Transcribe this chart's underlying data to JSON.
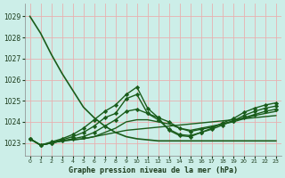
{
  "title": "Graphe pression niveau de la mer (hPa)",
  "background_color": "#cceee8",
  "grid_color": "#e8b0b0",
  "line_color": "#1a5c1a",
  "xlim": [
    -0.5,
    23.5
  ],
  "ylim": [
    1022.4,
    1029.6
  ],
  "yticks": [
    1023,
    1024,
    1025,
    1026,
    1027,
    1028,
    1029
  ],
  "xticks": [
    0,
    1,
    2,
    3,
    4,
    5,
    6,
    7,
    8,
    9,
    10,
    11,
    12,
    13,
    14,
    15,
    16,
    17,
    18,
    19,
    20,
    21,
    22,
    23
  ],
  "series": [
    {
      "y": [
        1029.0,
        1028.2,
        1027.2,
        1026.3,
        1025.5,
        1024.7,
        1024.2,
        1023.8,
        1023.5,
        1023.3,
        1023.2,
        1023.15,
        1023.1,
        1023.1,
        1023.1,
        1023.1,
        1023.1,
        1023.1,
        1023.1,
        1023.1,
        1023.1,
        1023.1,
        1023.1,
        1023.1
      ],
      "marker": false,
      "lw": 1.2
    },
    {
      "y": [
        1023.2,
        1022.9,
        1023.0,
        1023.1,
        1023.15,
        1023.2,
        1023.3,
        1023.4,
        1023.5,
        1023.6,
        1023.65,
        1023.7,
        1023.75,
        1023.8,
        1023.85,
        1023.9,
        1023.95,
        1024.0,
        1024.05,
        1024.1,
        1024.15,
        1024.2,
        1024.25,
        1024.3
      ],
      "marker": false,
      "lw": 1.0
    },
    {
      "y": [
        1023.2,
        1022.9,
        1023.0,
        1023.1,
        1023.15,
        1023.2,
        1023.3,
        1023.5,
        1023.7,
        1024.0,
        1024.1,
        1024.1,
        1024.0,
        1023.9,
        1023.7,
        1023.6,
        1023.7,
        1023.8,
        1023.9,
        1024.0,
        1024.15,
        1024.3,
        1024.4,
        1024.5
      ],
      "marker": false,
      "lw": 1.0
    },
    {
      "y": [
        1023.2,
        1022.9,
        1023.0,
        1023.1,
        1023.2,
        1023.3,
        1023.5,
        1023.8,
        1024.1,
        1024.5,
        1024.6,
        1024.4,
        1024.2,
        1024.0,
        1023.7,
        1023.55,
        1023.65,
        1023.75,
        1023.9,
        1024.05,
        1024.2,
        1024.35,
        1024.5,
        1024.6
      ],
      "marker": true,
      "lw": 1.0
    },
    {
      "y": [
        1023.2,
        1022.9,
        1023.0,
        1023.15,
        1023.3,
        1023.5,
        1023.8,
        1024.2,
        1024.4,
        1025.1,
        1025.3,
        1024.4,
        1024.1,
        1023.65,
        1023.4,
        1023.35,
        1023.5,
        1023.65,
        1023.85,
        1024.05,
        1024.3,
        1024.5,
        1024.65,
        1024.75
      ],
      "marker": true,
      "lw": 1.0
    },
    {
      "y": [
        1023.2,
        1022.9,
        1023.05,
        1023.2,
        1023.4,
        1023.7,
        1024.1,
        1024.5,
        1024.8,
        1025.3,
        1025.65,
        1024.65,
        1024.2,
        1023.6,
        1023.35,
        1023.3,
        1023.5,
        1023.7,
        1023.95,
        1024.15,
        1024.45,
        1024.65,
        1024.8,
        1024.9
      ],
      "marker": true,
      "lw": 1.0
    }
  ]
}
